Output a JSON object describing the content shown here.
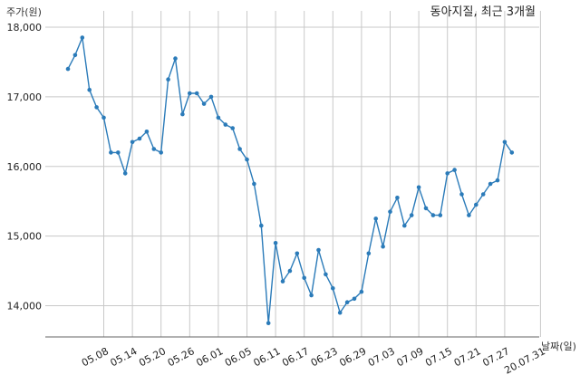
{
  "chart_data": {
    "type": "line",
    "title": "동아지질, 최근 3개월",
    "xlabel": "날짜(일)",
    "ylabel": "주가(원)",
    "ylim": [
      13550,
      18050
    ],
    "yticks": [
      14000,
      15000,
      16000,
      17000,
      18000
    ],
    "ytick_labels": [
      "14,000",
      "15,000",
      "16,000",
      "17,000",
      "18,000"
    ],
    "xtick_labels": [
      "05.08",
      "05.14",
      "05.20",
      "05.26",
      "06.01",
      "06.05",
      "06.11",
      "06.17",
      "06.23",
      "06.29",
      "07.03",
      "07.09",
      "07.15",
      "07.21",
      "07.27",
      "20.07.31"
    ],
    "xtick_positions": [
      5,
      9,
      13,
      17,
      21,
      25,
      29,
      33,
      37,
      41,
      45,
      49,
      53,
      57,
      61,
      66
    ],
    "grid": true,
    "color": "#2b7bb9",
    "series": [
      {
        "values": [
          17400,
          17600,
          17850,
          17100,
          16850,
          16700,
          16200,
          16200,
          15900,
          16350,
          16400,
          16500,
          16250,
          16200,
          17250,
          17550,
          16750,
          17050,
          17050,
          16900,
          17000,
          16700,
          16600,
          16550,
          16250,
          16100,
          15750,
          15150,
          13750,
          14900,
          14350,
          14500,
          14750,
          14400,
          14150,
          14800,
          14450,
          14250,
          13900,
          14050,
          14100,
          14200,
          14750,
          15250,
          14850,
          15350,
          15550,
          15150,
          15300,
          15700,
          15400,
          15300,
          15300,
          15900,
          15950,
          15600,
          15300,
          15450,
          15600,
          15750,
          15800,
          16350,
          16200
        ]
      }
    ]
  }
}
